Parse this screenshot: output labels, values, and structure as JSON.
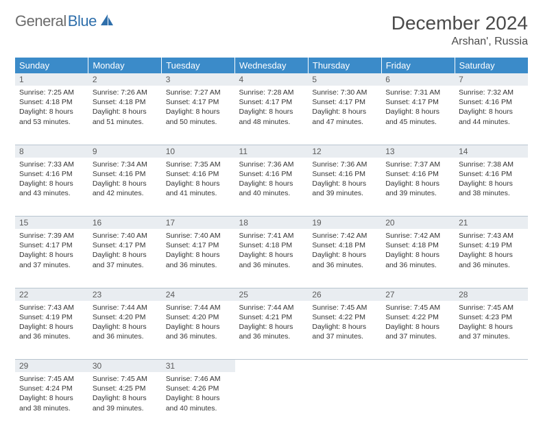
{
  "brand": {
    "part1": "General",
    "part2": "Blue"
  },
  "title": "December 2024",
  "location": "Arshan', Russia",
  "colors": {
    "header_bg": "#3b8bc9",
    "header_text": "#ffffff",
    "daynum_bg": "#e9edf1",
    "daynum_text": "#5a5a5a",
    "body_text": "#333333",
    "divider": "#b8c4cf",
    "logo_gray": "#6b6b6b",
    "logo_blue": "#2f6fab"
  },
  "typography": {
    "title_fontsize": 28,
    "location_fontsize": 16,
    "dayheader_fontsize": 13,
    "cell_fontsize": 10.5
  },
  "day_headers": [
    "Sunday",
    "Monday",
    "Tuesday",
    "Wednesday",
    "Thursday",
    "Friday",
    "Saturday"
  ],
  "weeks": [
    [
      {
        "n": "1",
        "sunrise": "7:25 AM",
        "sunset": "4:18 PM",
        "daylight": "8 hours and 53 minutes."
      },
      {
        "n": "2",
        "sunrise": "7:26 AM",
        "sunset": "4:18 PM",
        "daylight": "8 hours and 51 minutes."
      },
      {
        "n": "3",
        "sunrise": "7:27 AM",
        "sunset": "4:17 PM",
        "daylight": "8 hours and 50 minutes."
      },
      {
        "n": "4",
        "sunrise": "7:28 AM",
        "sunset": "4:17 PM",
        "daylight": "8 hours and 48 minutes."
      },
      {
        "n": "5",
        "sunrise": "7:30 AM",
        "sunset": "4:17 PM",
        "daylight": "8 hours and 47 minutes."
      },
      {
        "n": "6",
        "sunrise": "7:31 AM",
        "sunset": "4:17 PM",
        "daylight": "8 hours and 45 minutes."
      },
      {
        "n": "7",
        "sunrise": "7:32 AM",
        "sunset": "4:16 PM",
        "daylight": "8 hours and 44 minutes."
      }
    ],
    [
      {
        "n": "8",
        "sunrise": "7:33 AM",
        "sunset": "4:16 PM",
        "daylight": "8 hours and 43 minutes."
      },
      {
        "n": "9",
        "sunrise": "7:34 AM",
        "sunset": "4:16 PM",
        "daylight": "8 hours and 42 minutes."
      },
      {
        "n": "10",
        "sunrise": "7:35 AM",
        "sunset": "4:16 PM",
        "daylight": "8 hours and 41 minutes."
      },
      {
        "n": "11",
        "sunrise": "7:36 AM",
        "sunset": "4:16 PM",
        "daylight": "8 hours and 40 minutes."
      },
      {
        "n": "12",
        "sunrise": "7:36 AM",
        "sunset": "4:16 PM",
        "daylight": "8 hours and 39 minutes."
      },
      {
        "n": "13",
        "sunrise": "7:37 AM",
        "sunset": "4:16 PM",
        "daylight": "8 hours and 39 minutes."
      },
      {
        "n": "14",
        "sunrise": "7:38 AM",
        "sunset": "4:16 PM",
        "daylight": "8 hours and 38 minutes."
      }
    ],
    [
      {
        "n": "15",
        "sunrise": "7:39 AM",
        "sunset": "4:17 PM",
        "daylight": "8 hours and 37 minutes."
      },
      {
        "n": "16",
        "sunrise": "7:40 AM",
        "sunset": "4:17 PM",
        "daylight": "8 hours and 37 minutes."
      },
      {
        "n": "17",
        "sunrise": "7:40 AM",
        "sunset": "4:17 PM",
        "daylight": "8 hours and 36 minutes."
      },
      {
        "n": "18",
        "sunrise": "7:41 AM",
        "sunset": "4:18 PM",
        "daylight": "8 hours and 36 minutes."
      },
      {
        "n": "19",
        "sunrise": "7:42 AM",
        "sunset": "4:18 PM",
        "daylight": "8 hours and 36 minutes."
      },
      {
        "n": "20",
        "sunrise": "7:42 AM",
        "sunset": "4:18 PM",
        "daylight": "8 hours and 36 minutes."
      },
      {
        "n": "21",
        "sunrise": "7:43 AM",
        "sunset": "4:19 PM",
        "daylight": "8 hours and 36 minutes."
      }
    ],
    [
      {
        "n": "22",
        "sunrise": "7:43 AM",
        "sunset": "4:19 PM",
        "daylight": "8 hours and 36 minutes."
      },
      {
        "n": "23",
        "sunrise": "7:44 AM",
        "sunset": "4:20 PM",
        "daylight": "8 hours and 36 minutes."
      },
      {
        "n": "24",
        "sunrise": "7:44 AM",
        "sunset": "4:20 PM",
        "daylight": "8 hours and 36 minutes."
      },
      {
        "n": "25",
        "sunrise": "7:44 AM",
        "sunset": "4:21 PM",
        "daylight": "8 hours and 36 minutes."
      },
      {
        "n": "26",
        "sunrise": "7:45 AM",
        "sunset": "4:22 PM",
        "daylight": "8 hours and 37 minutes."
      },
      {
        "n": "27",
        "sunrise": "7:45 AM",
        "sunset": "4:22 PM",
        "daylight": "8 hours and 37 minutes."
      },
      {
        "n": "28",
        "sunrise": "7:45 AM",
        "sunset": "4:23 PM",
        "daylight": "8 hours and 37 minutes."
      }
    ],
    [
      {
        "n": "29",
        "sunrise": "7:45 AM",
        "sunset": "4:24 PM",
        "daylight": "8 hours and 38 minutes."
      },
      {
        "n": "30",
        "sunrise": "7:45 AM",
        "sunset": "4:25 PM",
        "daylight": "8 hours and 39 minutes."
      },
      {
        "n": "31",
        "sunrise": "7:46 AM",
        "sunset": "4:26 PM",
        "daylight": "8 hours and 40 minutes."
      },
      null,
      null,
      null,
      null
    ]
  ],
  "labels": {
    "sunrise_prefix": "Sunrise: ",
    "sunset_prefix": "Sunset: ",
    "daylight_prefix": "Daylight: "
  }
}
